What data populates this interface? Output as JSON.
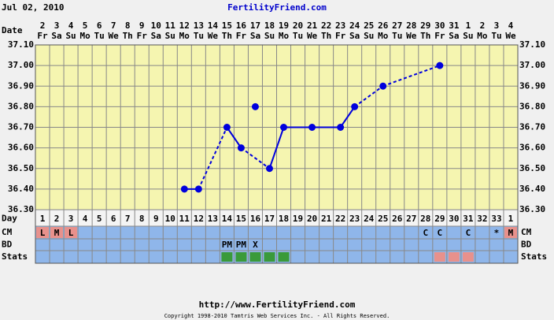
{
  "header": {
    "date": "Jul 02, 2010",
    "site": "FertilityFriend.com"
  },
  "chart_data": {
    "type": "line",
    "row_labels": {
      "date": "Date",
      "day": "Day",
      "cm": "CM",
      "bd": "BD",
      "stats": "Stats"
    },
    "dates": [
      "2",
      "3",
      "4",
      "5",
      "6",
      "7",
      "8",
      "9",
      "10",
      "11",
      "12",
      "13",
      "14",
      "15",
      "16",
      "17",
      "18",
      "19",
      "20",
      "21",
      "22",
      "23",
      "24",
      "25",
      "26",
      "27",
      "28",
      "29",
      "30",
      "31",
      "1",
      "2",
      "3",
      "4"
    ],
    "weekdays": [
      "Fr",
      "Sa",
      "Su",
      "Mo",
      "Tu",
      "We",
      "Th",
      "Fr",
      "Sa",
      "Su",
      "Mo",
      "Tu",
      "We",
      "Th",
      "Fr",
      "Sa",
      "Su",
      "Mo",
      "Tu",
      "We",
      "Th",
      "Fr",
      "Sa",
      "Su",
      "Mo",
      "Tu",
      "We",
      "Th",
      "Fr",
      "Sa",
      "Su",
      "Mo",
      "Tu",
      "We"
    ],
    "days": [
      1,
      2,
      3,
      4,
      5,
      6,
      7,
      8,
      9,
      10,
      11,
      12,
      13,
      14,
      15,
      16,
      17,
      18,
      19,
      20,
      21,
      22,
      23,
      24,
      25,
      26,
      27,
      28,
      29,
      30,
      31,
      32,
      33,
      1
    ],
    "ylim": [
      36.3,
      37.1
    ],
    "yticks": [
      {
        "value": 36.3,
        "label": "36.30"
      },
      {
        "value": 36.4,
        "label": "36.40"
      },
      {
        "value": 36.5,
        "label": "36.50"
      },
      {
        "value": 36.6,
        "label": "36.60"
      },
      {
        "value": 36.7,
        "label": "36.70"
      },
      {
        "value": 36.8,
        "label": "36.80"
      },
      {
        "value": 36.9,
        "label": "36.90"
      },
      {
        "value": 37.0,
        "label": "37.00"
      },
      {
        "value": 37.1,
        "label": "37.10"
      }
    ],
    "grid": true,
    "series": [
      {
        "color": "#0000dd",
        "connect": true,
        "connector_styles": [
          "solid",
          "dashed",
          "solid",
          "dashed",
          "solid",
          "solid",
          "solid",
          "solid",
          "dashed",
          "dashed"
        ],
        "values": [
          null,
          null,
          null,
          null,
          null,
          null,
          null,
          null,
          null,
          null,
          36.4,
          36.4,
          null,
          36.7,
          36.6,
          null,
          36.5,
          36.7,
          null,
          36.7,
          null,
          36.7,
          36.8,
          null,
          36.9,
          null,
          null,
          null,
          37.0,
          null,
          null,
          null,
          null,
          null
        ]
      },
      {
        "color": "#0000dd",
        "connect": false,
        "values": [
          null,
          null,
          null,
          null,
          null,
          null,
          null,
          null,
          null,
          null,
          null,
          null,
          null,
          null,
          null,
          36.8,
          null,
          null,
          null,
          null,
          null,
          null,
          null,
          null,
          null,
          null,
          null,
          null,
          null,
          null,
          null,
          null,
          null,
          null
        ]
      }
    ],
    "cm": [
      "L",
      "M",
      "L",
      null,
      null,
      null,
      null,
      null,
      null,
      null,
      null,
      null,
      null,
      null,
      null,
      null,
      null,
      null,
      null,
      null,
      null,
      null,
      null,
      null,
      null,
      null,
      null,
      "C",
      "C",
      null,
      "C",
      null,
      "*",
      "M"
    ],
    "cm_colors": [
      "#e8918c",
      "#e8918c",
      "#e8918c",
      null,
      null,
      null,
      null,
      null,
      null,
      null,
      null,
      null,
      null,
      null,
      null,
      null,
      null,
      null,
      null,
      null,
      null,
      null,
      null,
      null,
      null,
      null,
      null,
      null,
      null,
      null,
      null,
      null,
      null,
      "#e8918c"
    ],
    "bd": [
      null,
      null,
      null,
      null,
      null,
      null,
      null,
      null,
      null,
      null,
      null,
      null,
      null,
      "PM",
      "PM",
      "X",
      null,
      null,
      null,
      null,
      null,
      null,
      null,
      null,
      null,
      null,
      null,
      null,
      null,
      null,
      null,
      null,
      null,
      null
    ],
    "stats": [
      null,
      null,
      null,
      null,
      null,
      null,
      null,
      null,
      null,
      null,
      null,
      null,
      null,
      "#3a9a3a",
      "#3a9a3a",
      "#3a9a3a",
      "#3a9a3a",
      "#3a9a3a",
      null,
      null,
      null,
      null,
      null,
      null,
      null,
      null,
      null,
      null,
      "#e8918c",
      "#e8918c",
      "#e8918c",
      null,
      null,
      null
    ]
  },
  "footer": {
    "url": "http://www.FertilityFriend.com",
    "copyright": "Copyright 1998-2010 Tamtris Web Services Inc. - All Rights Reserved."
  }
}
